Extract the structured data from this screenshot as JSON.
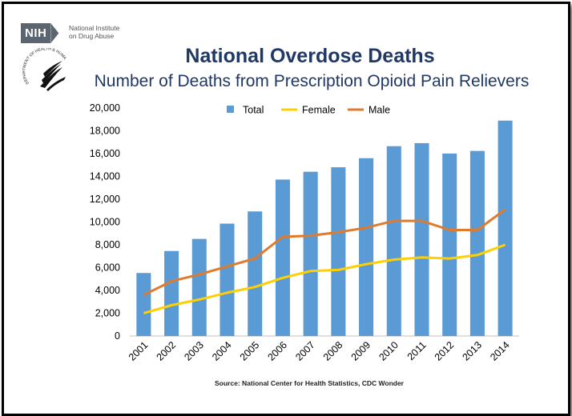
{
  "header": {
    "logo": "NIH",
    "logo_text_line1": "National Institute",
    "logo_text_line2": "on Drug Abuse",
    "seal_text": "DEPARTMENT OF HEALTH & HUMAN SERVICES USA"
  },
  "source": "Source: National Center for Health Statistics, CDC Wonder",
  "colors": {
    "total": "#5b9bd5",
    "female": "#ffd000",
    "male": "#e07a2c",
    "title": "#1f3864"
  },
  "chart_data": {
    "type": "bar",
    "title": "National Overdose Deaths",
    "subtitle": "Number of Deaths from Prescription Opioid Pain Relievers",
    "categories": [
      "2001",
      "2002",
      "2003",
      "2004",
      "2005",
      "2006",
      "2007",
      "2008",
      "2009",
      "2010",
      "2011",
      "2012",
      "2013",
      "2014"
    ],
    "series": [
      {
        "name": "Total",
        "kind": "bar",
        "values": [
          5528,
          7456,
          8517,
          9857,
          10928,
          13723,
          14408,
          14800,
          15597,
          16651,
          16917,
          16007,
          16235,
          18893
        ]
      },
      {
        "name": "Female",
        "kind": "line",
        "values": [
          2000,
          2700,
          3200,
          3800,
          4300,
          5100,
          5700,
          5800,
          6300,
          6700,
          6900,
          6800,
          7100,
          8000
        ]
      },
      {
        "name": "Male",
        "kind": "line",
        "values": [
          3600,
          4800,
          5400,
          6100,
          6800,
          8700,
          8800,
          9100,
          9500,
          10100,
          10100,
          9300,
          9300,
          11100
        ]
      }
    ],
    "yticks": [
      "0",
      "2,000",
      "4,000",
      "6,000",
      "8,000",
      "10,000",
      "12,000",
      "14,000",
      "16,000",
      "18,000",
      "20,000"
    ],
    "ylim": [
      0,
      20000
    ],
    "legend_position": "top-center",
    "grid": false
  }
}
